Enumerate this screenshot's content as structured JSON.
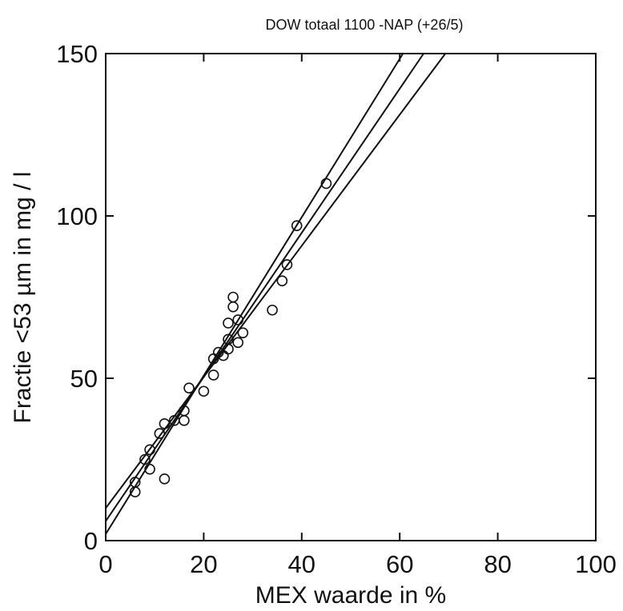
{
  "chart_data": {
    "type": "scatter",
    "title": "DOW totaal 1100 -NAP (+26/5)",
    "xlabel": "MEX waarde in %",
    "ylabel": "Fractie <53 µm in mg / l",
    "xlim": [
      0,
      100
    ],
    "ylim": [
      0,
      150
    ],
    "x_ticks": [
      0,
      20,
      40,
      60,
      80,
      100
    ],
    "y_ticks": [
      0,
      50,
      100,
      150
    ],
    "grid": false,
    "points": [
      {
        "x": 6,
        "y": 15
      },
      {
        "x": 6,
        "y": 18
      },
      {
        "x": 8,
        "y": 25
      },
      {
        "x": 9,
        "y": 22
      },
      {
        "x": 9,
        "y": 28
      },
      {
        "x": 11,
        "y": 33
      },
      {
        "x": 12,
        "y": 19
      },
      {
        "x": 12,
        "y": 36
      },
      {
        "x": 14,
        "y": 37
      },
      {
        "x": 16,
        "y": 37
      },
      {
        "x": 16,
        "y": 40
      },
      {
        "x": 17,
        "y": 47
      },
      {
        "x": 20,
        "y": 46
      },
      {
        "x": 22,
        "y": 51
      },
      {
        "x": 22,
        "y": 56
      },
      {
        "x": 23,
        "y": 58
      },
      {
        "x": 24,
        "y": 57
      },
      {
        "x": 25,
        "y": 59
      },
      {
        "x": 25,
        "y": 62
      },
      {
        "x": 25,
        "y": 67
      },
      {
        "x": 26,
        "y": 72
      },
      {
        "x": 26,
        "y": 75
      },
      {
        "x": 27,
        "y": 61
      },
      {
        "x": 27,
        "y": 68
      },
      {
        "x": 28,
        "y": 64
      },
      {
        "x": 34,
        "y": 71
      },
      {
        "x": 36,
        "y": 80
      },
      {
        "x": 37,
        "y": 85
      },
      {
        "x": 39,
        "y": 97
      },
      {
        "x": 45,
        "y": 110
      }
    ],
    "regression_lines": [
      {
        "intercept": 10,
        "slope": 2.02
      },
      {
        "intercept": 6,
        "slope": 2.22
      },
      {
        "intercept": 2,
        "slope": 2.44
      }
    ],
    "colors": {
      "ink": "#111111",
      "background": "#ffffff"
    }
  }
}
